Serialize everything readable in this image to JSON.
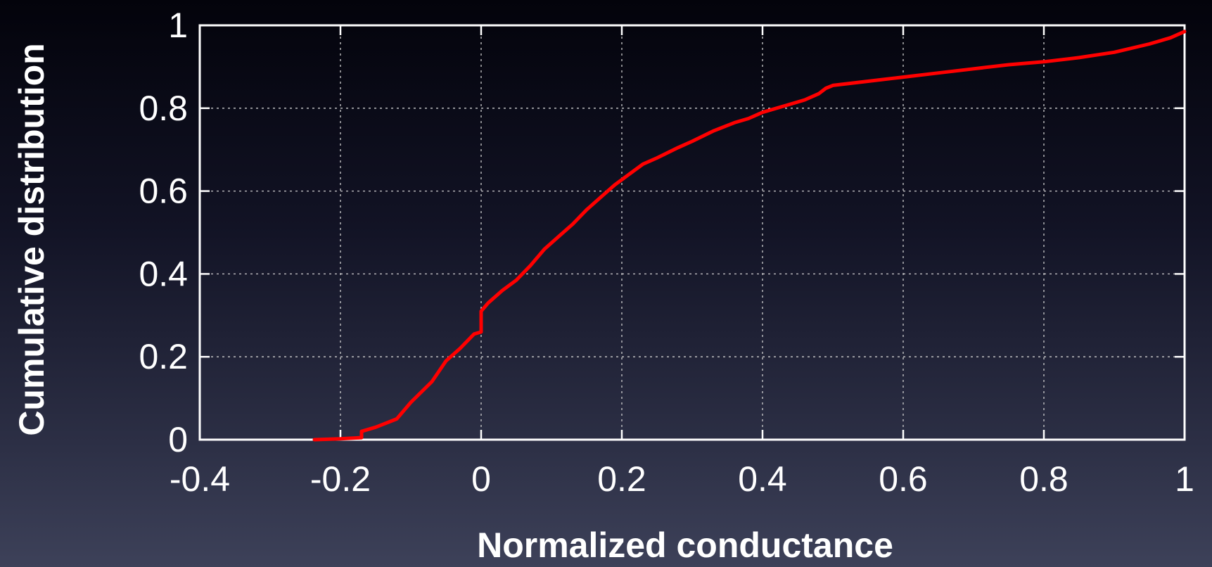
{
  "chart_data": {
    "type": "line",
    "title": "",
    "xlabel": "Normalized conductance",
    "ylabel": "Cumulative distribution",
    "xlim": [
      -0.4,
      1
    ],
    "ylim": [
      0,
      1
    ],
    "xticks": [
      "-0.4",
      "-0.2",
      "0",
      "0.2",
      "0.4",
      "0.6",
      "0.8",
      "1"
    ],
    "yticks": [
      "0",
      "0.2",
      "0.4",
      "0.6",
      "0.8",
      "1"
    ],
    "grid": true,
    "series": [
      {
        "color": "#ff0000",
        "x": [
          -0.237,
          -0.2,
          -0.17,
          -0.17,
          -0.15,
          -0.12,
          -0.1,
          -0.07,
          -0.05,
          -0.03,
          -0.01,
          0.0,
          0.0,
          0.01,
          0.03,
          0.05,
          0.07,
          0.09,
          0.11,
          0.13,
          0.15,
          0.17,
          0.19,
          0.21,
          0.23,
          0.25,
          0.28,
          0.3,
          0.33,
          0.36,
          0.38,
          0.4,
          0.43,
          0.46,
          0.48,
          0.49,
          0.5,
          0.55,
          0.6,
          0.65,
          0.7,
          0.75,
          0.8,
          0.85,
          0.9,
          0.95,
          0.98,
          1.0
        ],
        "y": [
          0.0,
          0.002,
          0.005,
          0.02,
          0.03,
          0.05,
          0.09,
          0.14,
          0.19,
          0.22,
          0.255,
          0.26,
          0.31,
          0.33,
          0.36,
          0.385,
          0.42,
          0.46,
          0.49,
          0.52,
          0.555,
          0.585,
          0.615,
          0.64,
          0.665,
          0.68,
          0.705,
          0.72,
          0.745,
          0.765,
          0.775,
          0.79,
          0.805,
          0.82,
          0.835,
          0.848,
          0.855,
          0.865,
          0.875,
          0.885,
          0.895,
          0.905,
          0.912,
          0.922,
          0.935,
          0.955,
          0.97,
          0.985
        ]
      }
    ]
  }
}
